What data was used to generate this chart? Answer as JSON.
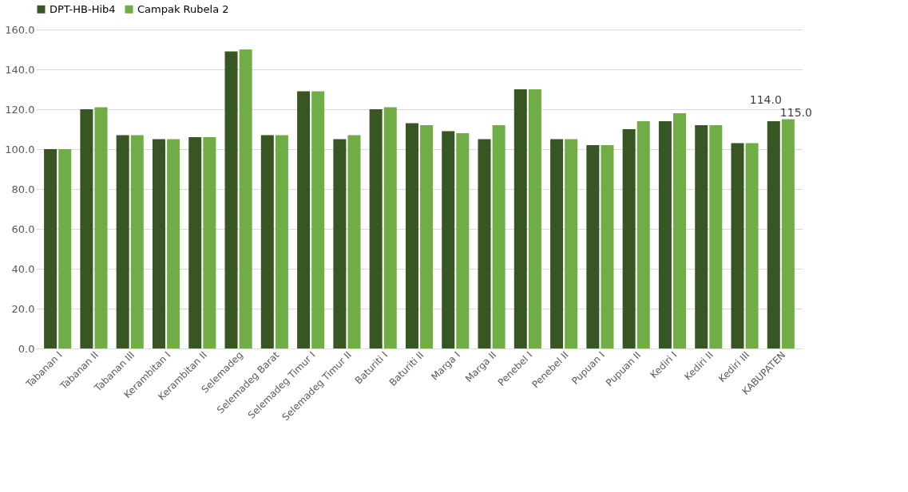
{
  "chart_data": {
    "type": "bar",
    "categories": [
      "Tabanan I",
      "Tabanan II",
      "Tabanan III",
      "Kerambitan I",
      "Kerambitan II",
      "Selemadeg",
      "Selemadeg Barat",
      "Selemadeg Timur I",
      "Selemadeg Timur II",
      "Baturiti I",
      "Baturiti II",
      "Marga I",
      "Marga II",
      "Penebel I",
      "Penebel II",
      "Pupuan I",
      "Pupuan II",
      "Kediri I",
      "Kediri II",
      "Kediri III",
      "KABUPATEN"
    ],
    "series": [
      {
        "name": "DPT-HB-Hib4",
        "color": "#375623",
        "values": [
          100,
          120,
          107,
          105,
          106,
          149,
          107,
          129,
          105,
          120,
          113,
          109,
          105,
          130,
          105,
          102,
          110,
          114,
          112,
          103,
          114
        ],
        "value_labels": [
          null,
          null,
          null,
          null,
          null,
          null,
          null,
          null,
          null,
          null,
          null,
          null,
          null,
          null,
          null,
          null,
          null,
          null,
          null,
          null,
          "114.0"
        ]
      },
      {
        "name": "Campak Rubela 2",
        "color": "#70ad47",
        "values": [
          100,
          121,
          107,
          105,
          106,
          150,
          107,
          129,
          107,
          121,
          112,
          108,
          112,
          130,
          105,
          102,
          114,
          118,
          112,
          103,
          115
        ],
        "value_labels": [
          null,
          null,
          null,
          null,
          null,
          null,
          null,
          null,
          null,
          null,
          null,
          null,
          null,
          null,
          null,
          null,
          null,
          null,
          null,
          null,
          "115.0"
        ]
      }
    ],
    "ylim": [
      0,
      160
    ],
    "yticks": [
      {
        "value": 0,
        "label": "0.0"
      },
      {
        "value": 20,
        "label": "20.0"
      },
      {
        "value": 40,
        "label": "40.0"
      },
      {
        "value": 60,
        "label": "60.0"
      },
      {
        "value": 80,
        "label": "80.0"
      },
      {
        "value": 100,
        "label": "100.0"
      },
      {
        "value": 120,
        "label": "120.0"
      },
      {
        "value": 140,
        "label": "140.0"
      },
      {
        "value": 160,
        "label": "160.0"
      }
    ],
    "grid": "y",
    "legend": "top"
  }
}
